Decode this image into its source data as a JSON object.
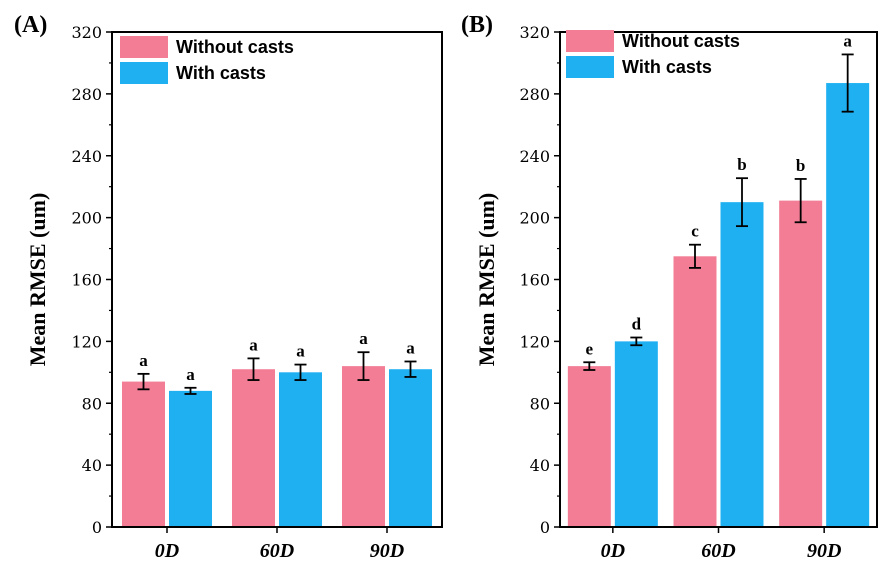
{
  "chart_data": [
    {
      "type": "bar",
      "panel_label": "(A)",
      "categories": [
        "0D",
        "60D",
        "90D"
      ],
      "ylabel": "Mean RMSE (um)",
      "ylim": [
        0,
        320
      ],
      "yticks": [
        "0",
        "40",
        "80",
        "120",
        "160",
        "200",
        "240",
        "280",
        "320"
      ],
      "legend_position": "top-left",
      "series": [
        {
          "name": "Without casts",
          "color": "#f27d95",
          "values": [
            94,
            102,
            104
          ],
          "errors": [
            5,
            7,
            9
          ],
          "labels": [
            "a",
            "a",
            "a"
          ]
        },
        {
          "name": "With casts",
          "color": "#1fb0f2",
          "values": [
            88,
            100,
            102
          ],
          "errors": [
            2,
            5,
            5
          ],
          "labels": [
            "a",
            "a",
            "a"
          ]
        }
      ]
    },
    {
      "type": "bar",
      "panel_label": "(B)",
      "categories": [
        "0D",
        "60D",
        "90D"
      ],
      "ylabel": "Mean RMSE (um)",
      "ylim": [
        0,
        320
      ],
      "yticks": [
        "0",
        "40",
        "80",
        "120",
        "160",
        "200",
        "240",
        "280",
        "320"
      ],
      "legend_position": "top-left",
      "series": [
        {
          "name": "Without casts",
          "color": "#f27d95",
          "values": [
            104,
            175,
            211
          ],
          "errors": [
            2.5,
            7.5,
            14
          ],
          "labels": [
            "e",
            "c",
            "b"
          ]
        },
        {
          "name": "With casts",
          "color": "#1fb0f2",
          "values": [
            120,
            210,
            287
          ],
          "errors": [
            2.5,
            15.5,
            18.5
          ],
          "labels": [
            "d",
            "b",
            "a"
          ]
        }
      ]
    }
  ]
}
